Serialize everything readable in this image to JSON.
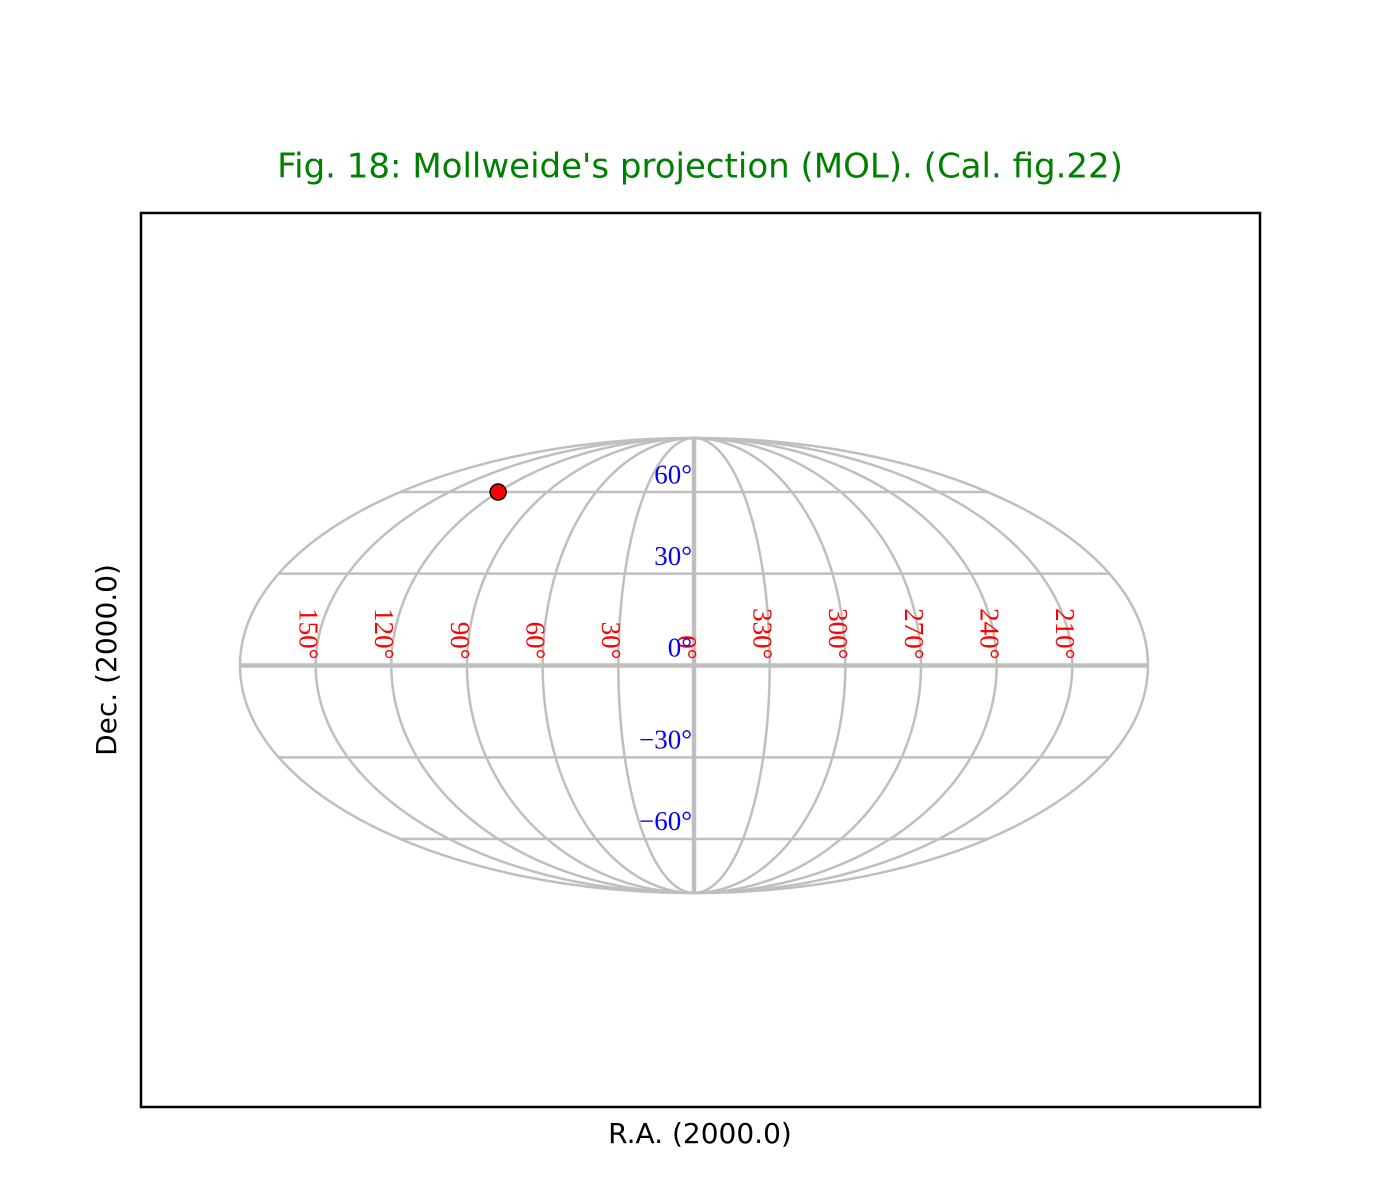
{
  "chart_data": {
    "type": "mollweide",
    "title": "Fig. 18: Mollweide's projection (MOL). (Cal. fig.22)",
    "title_color": "#008000",
    "xlabel": "R.A. (2000.0)",
    "ylabel": "Dec. (2000.0)",
    "grid_color": "#bfbfbf",
    "lon_label_color": "#ff0000",
    "lat_label_color": "#0000ff",
    "lon_ticks": [
      {
        "value": 150,
        "label": "150°"
      },
      {
        "value": 120,
        "label": "120°"
      },
      {
        "value": 90,
        "label": "90°"
      },
      {
        "value": 60,
        "label": "60°"
      },
      {
        "value": 30,
        "label": "30°"
      },
      {
        "value": 0,
        "label": "0°"
      },
      {
        "value": 330,
        "label": "330°"
      },
      {
        "value": 300,
        "label": "300°"
      },
      {
        "value": 270,
        "label": "270°"
      },
      {
        "value": 240,
        "label": "240°"
      },
      {
        "value": 210,
        "label": "210°"
      }
    ],
    "lat_ticks": [
      {
        "value": 60,
        "label": "60°"
      },
      {
        "value": 30,
        "label": "30°"
      },
      {
        "value": 0,
        "label": "0°"
      },
      {
        "value": -30,
        "label": "−30°"
      },
      {
        "value": -60,
        "label": "−60°"
      }
    ],
    "series": [
      {
        "color": "#ff0000",
        "x": [
          120
        ],
        "y": [
          60
        ]
      }
    ]
  }
}
